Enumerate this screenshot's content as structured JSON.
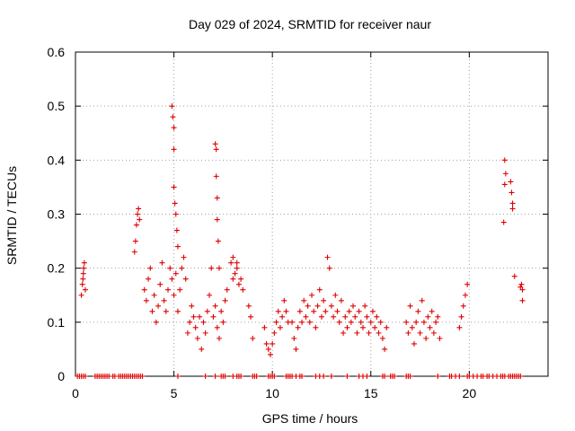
{
  "chart_data": {
    "type": "scatter",
    "title": "Day 029 of 2024, SRMTID for receiver naur",
    "xlabel": "GPS time / hours",
    "ylabel": "SRMTID / TECUs",
    "xlim": [
      0,
      24
    ],
    "ylim": [
      0,
      0.6
    ],
    "xticks": [
      0,
      5,
      10,
      15,
      20
    ],
    "yticks": [
      0,
      0.1,
      0.2,
      0.3,
      0.4,
      0.5,
      0.6
    ],
    "xtick_labels": [
      "0",
      "5",
      "10",
      "15",
      "20"
    ],
    "ytick_labels": [
      "0",
      "0.1",
      "0.2",
      "0.3",
      "0.4",
      "0.5",
      "0.6"
    ],
    "grid": true,
    "marker": "+",
    "series_color": "#e00000",
    "points": [
      [
        0.3,
        0.15
      ],
      [
        0.35,
        0.17
      ],
      [
        0.4,
        0.19
      ],
      [
        0.45,
        0.21
      ],
      [
        0.5,
        0.16
      ],
      [
        0.42,
        0.2
      ],
      [
        0.38,
        0.18
      ],
      [
        3.0,
        0.23
      ],
      [
        3.05,
        0.25
      ],
      [
        3.1,
        0.28
      ],
      [
        3.15,
        0.3
      ],
      [
        3.2,
        0.31
      ],
      [
        3.25,
        0.29
      ],
      [
        3.5,
        0.16
      ],
      [
        3.6,
        0.14
      ],
      [
        3.7,
        0.18
      ],
      [
        3.8,
        0.2
      ],
      [
        3.9,
        0.12
      ],
      [
        4.0,
        0.15
      ],
      [
        4.1,
        0.1
      ],
      [
        4.2,
        0.13
      ],
      [
        4.3,
        0.17
      ],
      [
        4.4,
        0.21
      ],
      [
        4.5,
        0.14
      ],
      [
        4.6,
        0.12
      ],
      [
        4.7,
        0.16
      ],
      [
        4.8,
        0.2
      ],
      [
        4.9,
        0.18
      ],
      [
        5.0,
        0.15
      ],
      [
        5.1,
        0.19
      ],
      [
        5.2,
        0.12
      ],
      [
        5.3,
        0.16
      ],
      [
        5.4,
        0.2
      ],
      [
        5.5,
        0.22
      ],
      [
        5.6,
        0.18
      ],
      [
        5.7,
        0.08
      ],
      [
        5.8,
        0.1
      ],
      [
        5.9,
        0.13
      ],
      [
        6.0,
        0.11
      ],
      [
        4.9,
        0.5
      ],
      [
        4.95,
        0.48
      ],
      [
        5.0,
        0.46
      ],
      [
        5.0,
        0.42
      ],
      [
        5.0,
        0.35
      ],
      [
        5.05,
        0.32
      ],
      [
        5.1,
        0.3
      ],
      [
        5.15,
        0.27
      ],
      [
        5.2,
        0.24
      ],
      [
        6.1,
        0.09
      ],
      [
        6.2,
        0.07
      ],
      [
        6.3,
        0.11
      ],
      [
        6.4,
        0.05
      ],
      [
        6.5,
        0.1
      ],
      [
        6.6,
        0.08
      ],
      [
        6.7,
        0.12
      ],
      [
        6.8,
        0.15
      ],
      [
        6.9,
        0.2
      ],
      [
        7.0,
        0.11
      ],
      [
        7.1,
        0.13
      ],
      [
        7.2,
        0.09
      ],
      [
        7.3,
        0.07
      ],
      [
        7.4,
        0.12
      ],
      [
        7.5,
        0.1
      ],
      [
        7.6,
        0.14
      ],
      [
        7.7,
        0.16
      ],
      [
        7.1,
        0.43
      ],
      [
        7.15,
        0.42
      ],
      [
        7.15,
        0.37
      ],
      [
        7.2,
        0.33
      ],
      [
        7.2,
        0.29
      ],
      [
        7.25,
        0.25
      ],
      [
        7.3,
        0.2
      ],
      [
        7.9,
        0.21
      ],
      [
        8.0,
        0.22
      ],
      [
        8.1,
        0.19
      ],
      [
        8.2,
        0.2
      ],
      [
        8.3,
        0.17
      ],
      [
        8.4,
        0.18
      ],
      [
        8.5,
        0.16
      ],
      [
        8.0,
        0.18
      ],
      [
        8.2,
        0.21
      ],
      [
        8.8,
        0.13
      ],
      [
        8.9,
        0.11
      ],
      [
        9.0,
        0.07
      ],
      [
        9.6,
        0.09
      ],
      [
        9.7,
        0.06
      ],
      [
        9.8,
        0.05
      ],
      [
        9.9,
        0.04
      ],
      [
        10.0,
        0.06
      ],
      [
        10.1,
        0.08
      ],
      [
        10.2,
        0.1
      ],
      [
        10.3,
        0.12
      ],
      [
        10.4,
        0.09
      ],
      [
        10.5,
        0.11
      ],
      [
        10.6,
        0.14
      ],
      [
        10.7,
        0.12
      ],
      [
        10.8,
        0.1
      ],
      [
        11.0,
        0.1
      ],
      [
        11.1,
        0.07
      ],
      [
        11.2,
        0.05
      ],
      [
        11.3,
        0.09
      ],
      [
        11.4,
        0.12
      ],
      [
        11.5,
        0.1
      ],
      [
        11.6,
        0.14
      ],
      [
        11.7,
        0.11
      ],
      [
        11.8,
        0.13
      ],
      [
        11.9,
        0.1
      ],
      [
        12.0,
        0.15
      ],
      [
        12.1,
        0.12
      ],
      [
        12.2,
        0.09
      ],
      [
        12.3,
        0.13
      ],
      [
        12.4,
        0.16
      ],
      [
        12.5,
        0.11
      ],
      [
        12.6,
        0.14
      ],
      [
        12.7,
        0.12
      ],
      [
        12.8,
        0.22
      ],
      [
        12.9,
        0.2
      ],
      [
        13.0,
        0.13
      ],
      [
        13.1,
        0.11
      ],
      [
        13.2,
        0.15
      ],
      [
        13.3,
        0.12
      ],
      [
        13.4,
        0.1
      ],
      [
        13.5,
        0.14
      ],
      [
        13.6,
        0.08
      ],
      [
        13.7,
        0.11
      ],
      [
        13.8,
        0.09
      ],
      [
        13.9,
        0.12
      ],
      [
        14.0,
        0.1
      ],
      [
        14.1,
        0.13
      ],
      [
        14.2,
        0.11
      ],
      [
        14.3,
        0.08
      ],
      [
        14.4,
        0.12
      ],
      [
        14.5,
        0.1
      ],
      [
        14.6,
        0.09
      ],
      [
        14.7,
        0.13
      ],
      [
        14.8,
        0.11
      ],
      [
        14.9,
        0.08
      ],
      [
        15.0,
        0.1
      ],
      [
        15.1,
        0.12
      ],
      [
        15.2,
        0.09
      ],
      [
        15.3,
        0.11
      ],
      [
        15.4,
        0.08
      ],
      [
        15.5,
        0.1
      ],
      [
        15.6,
        0.07
      ],
      [
        15.7,
        0.05
      ],
      [
        15.8,
        0.09
      ],
      [
        16.8,
        0.1
      ],
      [
        16.9,
        0.08
      ],
      [
        17.0,
        0.13
      ],
      [
        17.1,
        0.09
      ],
      [
        17.2,
        0.06
      ],
      [
        17.3,
        0.1
      ],
      [
        17.4,
        0.12
      ],
      [
        17.5,
        0.08
      ],
      [
        17.6,
        0.14
      ],
      [
        17.7,
        0.1
      ],
      [
        17.8,
        0.07
      ],
      [
        17.9,
        0.11
      ],
      [
        18.0,
        0.09
      ],
      [
        18.1,
        0.12
      ],
      [
        18.2,
        0.08
      ],
      [
        18.3,
        0.1
      ],
      [
        18.4,
        0.11
      ],
      [
        18.5,
        0.07
      ],
      [
        19.5,
        0.09
      ],
      [
        19.6,
        0.11
      ],
      [
        19.7,
        0.13
      ],
      [
        19.8,
        0.15
      ],
      [
        19.9,
        0.17
      ],
      [
        21.8,
        0.4
      ],
      [
        21.85,
        0.375
      ],
      [
        21.8,
        0.355
      ],
      [
        21.75,
        0.285
      ],
      [
        22.1,
        0.36
      ],
      [
        22.15,
        0.34
      ],
      [
        22.2,
        0.32
      ],
      [
        22.2,
        0.31
      ],
      [
        22.3,
        0.185
      ],
      [
        22.6,
        0.165
      ],
      [
        22.65,
        0.17
      ],
      [
        22.7,
        0.16
      ],
      [
        22.7,
        0.14
      ]
    ],
    "zero_points": [
      0.1,
      0.2,
      0.3,
      0.4,
      0.5,
      1.0,
      1.1,
      1.2,
      1.3,
      1.4,
      1.5,
      1.6,
      1.7,
      1.9,
      2.0,
      2.2,
      2.3,
      2.4,
      2.5,
      2.6,
      2.7,
      2.8,
      2.9,
      3.0,
      3.1,
      3.2,
      3.3,
      3.4,
      5.2,
      6.6,
      7.1,
      7.4,
      7.5,
      7.6,
      8.0,
      8.2,
      8.3,
      8.4,
      9.0,
      9.1,
      9.2,
      9.8,
      9.9,
      10.0,
      10.1,
      10.7,
      10.8,
      10.9,
      11.0,
      11.2,
      11.4,
      11.5,
      12.2,
      12.4,
      12.6,
      13.0,
      13.8,
      14.4,
      14.6,
      14.8,
      15.6,
      15.7,
      16.0,
      16.1,
      16.2,
      16.8,
      16.9,
      17.0,
      18.4,
      19.0,
      19.1,
      19.3,
      19.5,
      19.9,
      20.0,
      20.2,
      20.4,
      20.6,
      20.7,
      20.9,
      21.0,
      21.2,
      21.4,
      21.6,
      21.7,
      21.8,
      22.0,
      22.1,
      22.2,
      22.3,
      22.4,
      22.5,
      22.6
    ]
  }
}
